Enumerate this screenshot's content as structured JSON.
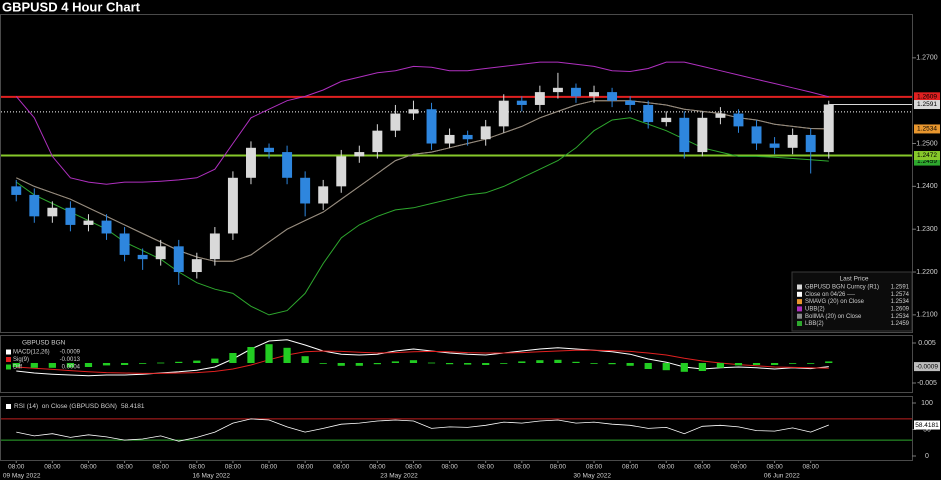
{
  "chart_data": [
    {
      "type": "candlestick",
      "title": "GBPUSD 4 Hour Chart",
      "name": "GBPUSD BGN Curncy (R1)",
      "legend_title": "Last Price",
      "up_color": "#d9d9d9",
      "down_color": "#2e86de",
      "open": [
        1.24,
        1.238,
        1.233,
        1.235,
        1.231,
        1.232,
        1.229,
        1.224,
        1.223,
        1.226,
        1.22,
        1.223,
        1.229,
        1.242,
        1.249,
        1.248,
        1.242,
        1.236,
        1.24,
        1.247,
        1.248,
        1.253,
        1.257,
        1.258,
        1.25,
        1.252,
        1.251,
        1.254,
        1.26,
        1.259,
        1.262,
        1.263,
        1.261,
        1.262,
        1.26,
        1.259,
        1.255,
        1.256,
        1.248,
        1.256,
        1.257,
        1.254,
        1.25,
        1.249,
        1.252,
        1.248
      ],
      "high": [
        1.2415,
        1.2395,
        1.2365,
        1.2365,
        1.2335,
        1.2335,
        1.2305,
        1.2255,
        1.2275,
        1.2275,
        1.2245,
        1.2305,
        1.2435,
        1.2505,
        1.25,
        1.2495,
        1.2435,
        1.2415,
        1.2485,
        1.2495,
        1.2545,
        1.259,
        1.26,
        1.2595,
        1.2535,
        1.253,
        1.2555,
        1.2615,
        1.261,
        1.2635,
        1.2665,
        1.264,
        1.2635,
        1.263,
        1.261,
        1.26,
        1.2575,
        1.2575,
        1.2575,
        1.2585,
        1.258,
        1.2555,
        1.2515,
        1.2535,
        1.2535,
        1.26
      ],
      "low": [
        1.2365,
        1.2315,
        1.2315,
        1.2295,
        1.2295,
        1.2275,
        1.2225,
        1.2205,
        1.2215,
        1.217,
        1.2185,
        1.2215,
        1.2275,
        1.2405,
        1.2465,
        1.2405,
        1.233,
        1.2345,
        1.2385,
        1.2455,
        1.2465,
        1.2515,
        1.2555,
        1.2485,
        1.249,
        1.2495,
        1.2495,
        1.2525,
        1.2575,
        1.2575,
        1.2605,
        1.2595,
        1.2595,
        1.2585,
        1.2575,
        1.2535,
        1.254,
        1.2465,
        1.247,
        1.2545,
        1.2525,
        1.2485,
        1.2475,
        1.2475,
        1.243,
        1.2465
      ],
      "close": [
        1.238,
        1.233,
        1.235,
        1.231,
        1.232,
        1.229,
        1.224,
        1.223,
        1.226,
        1.22,
        1.223,
        1.229,
        1.242,
        1.249,
        1.248,
        1.242,
        1.236,
        1.24,
        1.247,
        1.248,
        1.253,
        1.257,
        1.258,
        1.25,
        1.252,
        1.251,
        1.254,
        1.26,
        1.259,
        1.262,
        1.263,
        1.261,
        1.262,
        1.26,
        1.259,
        1.255,
        1.256,
        1.248,
        1.256,
        1.257,
        1.254,
        1.25,
        1.249,
        1.252,
        1.248,
        1.2591
      ],
      "reference": {
        "name": "Close on 04/26 ----",
        "value": 1.2574,
        "color": "#ffffff"
      },
      "series": [
        {
          "name": "SMAVG (20)  on Close",
          "color": "#e8962e",
          "last_label": true,
          "values": [
            1.242,
            1.24,
            1.2385,
            1.237,
            1.235,
            1.233,
            1.231,
            1.229,
            1.227,
            1.225,
            1.2235,
            1.2225,
            1.2225,
            1.224,
            1.227,
            1.23,
            1.232,
            1.234,
            1.237,
            1.24,
            1.243,
            1.246,
            1.2475,
            1.248,
            1.249,
            1.25,
            1.251,
            1.2525,
            1.254,
            1.256,
            1.2575,
            1.259,
            1.26,
            1.26,
            1.26,
            1.2595,
            1.259,
            1.258,
            1.2575,
            1.257,
            1.256,
            1.2555,
            1.2545,
            1.254,
            1.2535,
            1.2534
          ]
        },
        {
          "name": "UBB(2)",
          "color": "#b030c0",
          "values": [
            1.261,
            1.256,
            1.247,
            1.242,
            1.241,
            1.2405,
            1.241,
            1.241,
            1.2412,
            1.2415,
            1.242,
            1.244,
            1.25,
            1.256,
            1.258,
            1.26,
            1.261,
            1.2625,
            1.2645,
            1.2655,
            1.2665,
            1.267,
            1.268,
            1.2678,
            1.267,
            1.267,
            1.2675,
            1.268,
            1.2685,
            1.269,
            1.269,
            1.2685,
            1.268,
            1.267,
            1.2668,
            1.2675,
            1.269,
            1.269,
            1.268,
            1.267,
            1.266,
            1.265,
            1.264,
            1.263,
            1.262,
            1.2609
          ]
        },
        {
          "name": "BollMA (20)  on Close",
          "color": "#8a8a8a",
          "values": [
            1.242,
            1.24,
            1.2385,
            1.237,
            1.235,
            1.233,
            1.231,
            1.229,
            1.227,
            1.225,
            1.2235,
            1.2225,
            1.2225,
            1.224,
            1.227,
            1.23,
            1.232,
            1.234,
            1.237,
            1.24,
            1.243,
            1.246,
            1.2475,
            1.248,
            1.249,
            1.25,
            1.251,
            1.2525,
            1.254,
            1.256,
            1.2575,
            1.259,
            1.26,
            1.26,
            1.26,
            1.2595,
            1.259,
            1.258,
            1.2575,
            1.257,
            1.256,
            1.2555,
            1.2545,
            1.254,
            1.2535,
            1.2534
          ]
        },
        {
          "name": "LBB(2)",
          "color": "#2ea82e",
          "last_label": true,
          "values": [
            1.241,
            1.238,
            1.236,
            1.234,
            1.232,
            1.23,
            1.227,
            1.225,
            1.223,
            1.22,
            1.2175,
            1.216,
            1.215,
            1.212,
            1.21,
            1.211,
            1.215,
            1.222,
            1.228,
            1.231,
            1.233,
            1.2345,
            1.235,
            1.236,
            1.237,
            1.238,
            1.2385,
            1.24,
            1.242,
            1.244,
            1.246,
            1.249,
            1.253,
            1.2555,
            1.256,
            1.2545,
            1.253,
            1.251,
            1.249,
            1.248,
            1.247,
            1.247,
            1.2468,
            1.2465,
            1.2462,
            1.2459
          ]
        }
      ],
      "hlines": [
        {
          "value": 1.2609,
          "color": "#e02020"
        },
        {
          "value": 1.2472,
          "color": "#86c82a"
        }
      ],
      "ylim": [
        1.206,
        1.28
      ],
      "yticks": [
        {
          "value": 1.21,
          "label": "1.2100"
        },
        {
          "value": 1.22,
          "label": "1.2200"
        },
        {
          "value": 1.23,
          "label": "1.2300"
        },
        {
          "value": 1.24,
          "label": "1.2400"
        },
        {
          "value": 1.25,
          "label": "1.2500"
        },
        {
          "value": 1.27,
          "label": "1.2700"
        }
      ],
      "xlim": [
        -0.9,
        45.9
      ],
      "xticks": [
        {
          "value": 0,
          "label": "08:00"
        },
        {
          "value": 2,
          "label": "08:00"
        },
        {
          "value": 4,
          "label": "08:00"
        },
        {
          "value": 6,
          "label": "08:00"
        },
        {
          "value": 8,
          "label": "08:00"
        },
        {
          "value": 10,
          "label": "08:00"
        },
        {
          "value": 12,
          "label": "08:00"
        },
        {
          "value": 14,
          "label": "08:00"
        },
        {
          "value": 16,
          "label": "08:00"
        },
        {
          "value": 18,
          "label": "08:00"
        },
        {
          "value": 20,
          "label": "08:00"
        },
        {
          "value": 22,
          "label": "08:00"
        },
        {
          "value": 24,
          "label": "08:00"
        },
        {
          "value": 26,
          "label": "08:00"
        },
        {
          "value": 28,
          "label": "08:00"
        },
        {
          "value": 30,
          "label": "08:00"
        },
        {
          "value": 32,
          "label": "08:00"
        },
        {
          "value": 34,
          "label": "08:00"
        },
        {
          "value": 36,
          "label": "08:00"
        },
        {
          "value": 38,
          "label": "08:00"
        },
        {
          "value": 40,
          "label": "08:00"
        },
        {
          "value": 42,
          "label": "08:00"
        },
        {
          "value": 44,
          "label": "08:00"
        }
      ],
      "date_labels": [
        {
          "value": 0.3,
          "label": "09 May 2022"
        },
        {
          "value": 10.8,
          "label": "16 May 2022"
        },
        {
          "value": 21.2,
          "label": "23 May 2022"
        },
        {
          "value": 31.9,
          "label": "30 May 2022"
        },
        {
          "value": 42.4,
          "label": "06 Jun 2022"
        }
      ]
    },
    {
      "type": "macd",
      "title": "GBPUSD BGN",
      "series": [
        {
          "name": "MACD(12,26)",
          "color": "#ffffff",
          "last_label": true,
          "values": [
            -0.002,
            -0.0025,
            -0.0028,
            -0.003,
            -0.0032,
            -0.003,
            -0.003,
            -0.0028,
            -0.0025,
            -0.0022,
            -0.0018,
            -0.001,
            0.001,
            0.0035,
            0.0055,
            0.0058,
            0.0045,
            0.003,
            0.0022,
            0.002,
            0.0022,
            0.003,
            0.0035,
            0.003,
            0.0025,
            0.0022,
            0.002,
            0.0025,
            0.003,
            0.0035,
            0.0038,
            0.0035,
            0.0032,
            0.0028,
            0.0022,
            0.001,
            0.0002,
            -0.001,
            -0.0015,
            -0.0012,
            -0.001,
            -0.0012,
            -0.0015,
            -0.0012,
            -0.0014,
            -0.0009
          ]
        },
        {
          "name": "Sig(9)",
          "color": "#e02020",
          "values": [
            -0.001,
            -0.0013,
            -0.0016,
            -0.0019,
            -0.0022,
            -0.0024,
            -0.0025,
            -0.0026,
            -0.0026,
            -0.0025,
            -0.0024,
            -0.0021,
            -0.0015,
            -0.0005,
            0.0008,
            0.002,
            0.0028,
            0.003,
            0.0029,
            0.0027,
            0.0025,
            0.0026,
            0.0028,
            0.0029,
            0.0028,
            0.0026,
            0.0025,
            0.0025,
            0.0026,
            0.0028,
            0.003,
            0.0032,
            0.0032,
            0.0031,
            0.0029,
            0.0025,
            0.002,
            0.0012,
            0.0005,
            0.0,
            -0.0004,
            -0.0007,
            -0.001,
            -0.0011,
            -0.0012,
            -0.0013
          ]
        },
        {
          "name": "Diff",
          "color": "#22cc22",
          "style": "bars",
          "values": [
            -0.001,
            -0.0012,
            -0.0012,
            -0.0011,
            -0.001,
            -0.0006,
            -0.0005,
            -0.0002,
            0.0001,
            0.0003,
            0.0006,
            0.0011,
            0.0025,
            0.004,
            0.0047,
            0.0038,
            0.0017,
            0.0,
            -0.0007,
            -0.0007,
            -0.0003,
            0.0004,
            0.0007,
            0.0001,
            -0.0003,
            -0.0004,
            -0.0005,
            0.0,
            0.0004,
            0.0007,
            0.0008,
            0.0003,
            0.0,
            -0.0003,
            -0.0007,
            -0.0015,
            -0.0018,
            -0.0022,
            -0.002,
            -0.0012,
            -0.0006,
            -0.0005,
            -0.0005,
            -0.0001,
            -0.0002,
            0.0004
          ]
        }
      ],
      "ylim": [
        -0.007,
        0.007
      ],
      "yticks": [
        0.005,
        -0.005
      ]
    },
    {
      "type": "rsi",
      "title": "RSI (14)  on Close (GBPUSD BGN)",
      "color": "#ffffff",
      "values": [
        45,
        38,
        42,
        35,
        40,
        36,
        30,
        32,
        38,
        28,
        35,
        45,
        62,
        70,
        68,
        55,
        45,
        52,
        60,
        62,
        66,
        68,
        66,
        52,
        55,
        54,
        58,
        64,
        62,
        66,
        68,
        62,
        64,
        60,
        58,
        52,
        54,
        42,
        56,
        58,
        55,
        48,
        47,
        53,
        45,
        58.4181
      ],
      "levels": [
        {
          "value": 70,
          "color": "#c02020"
        },
        {
          "value": 30,
          "color": "#2ea82e"
        }
      ],
      "ylim": [
        0,
        100
      ],
      "yticks": [
        0,
        50,
        100
      ]
    }
  ]
}
